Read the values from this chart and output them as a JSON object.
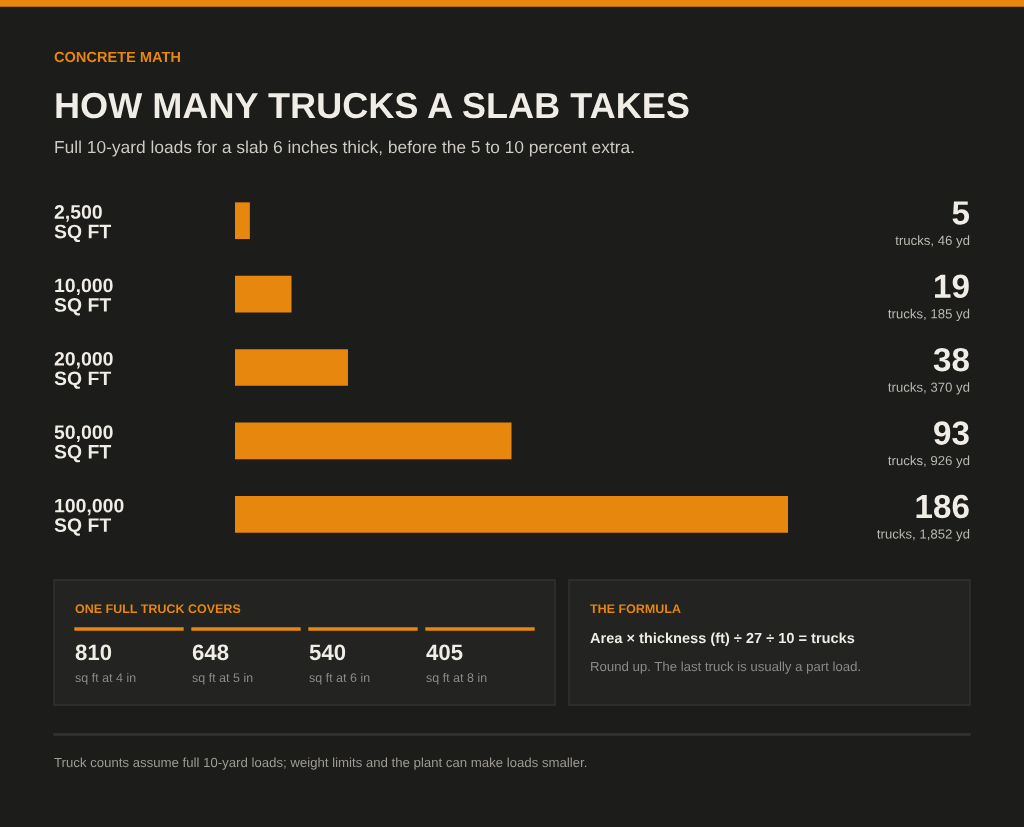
{
  "chart_data": {
    "type": "bar",
    "orientation": "horizontal",
    "title": "HOW MANY TRUCKS A SLAB TAKES",
    "subtitle": "Full 10-yard loads for a slab 6 inches thick, before the 5 to 10 percent extra.",
    "categories": [
      "2,500\nSQ FT",
      "10,000\nSQ FT",
      "20,000\nSQ FT",
      "50,000\nSQ FT",
      "100,000\nSQ FT"
    ],
    "values": [
      5,
      19,
      38,
      93,
      186
    ],
    "color": "#e8870e",
    "xlim": [
      0,
      186
    ],
    "value_labels": [
      "5\ntrucks, 46 yd",
      "19\ntrucks, 185 yd",
      "38\ntrucks, 370 yd",
      "93\ntrucks, 926 yd",
      "186\ntrucks, 1,852 yd"
    ],
    "annotations": [
      "CONCRETE MATH",
      "ONE FULL TRUCK COVERS",
      "810",
      "sq ft at 4 in",
      "648",
      "sq ft at 5 in",
      "540",
      "sq ft at 6 in",
      "405",
      "sq ft at 8 in",
      "THE FORMULA",
      "Area × thickness (ft) ÷ 27 ÷ 10 = trucks",
      "Round up. The last truck is usually a part load.",
      "Truck counts assume full 10-yard loads; weight limits and the plant can make loads smaller."
    ]
  }
}
